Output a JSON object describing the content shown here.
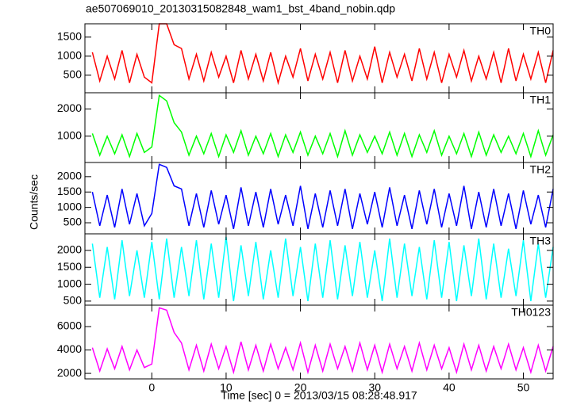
{
  "chart_data": {
    "type": "line",
    "title": "ae507069010_20130315082848_wam1_bst_4band_nobin.qdp",
    "x_label": "Time [sec] 0 = 2013/03/15 08:28:48.917",
    "y_label": "Counts/sec",
    "xlim": [
      -9,
      54
    ],
    "xticks": [
      0,
      10,
      20,
      30,
      40,
      50
    ],
    "x": [
      -8,
      -7,
      -6,
      -5,
      -4,
      -3,
      -2,
      -1,
      0,
      1,
      2,
      3,
      4,
      5,
      6,
      7,
      8,
      9,
      10,
      11,
      12,
      13,
      14,
      15,
      16,
      17,
      18,
      19,
      20,
      21,
      22,
      23,
      24,
      25,
      26,
      27,
      28,
      29,
      30,
      31,
      32,
      33,
      34,
      35,
      36,
      37,
      38,
      39,
      40,
      41,
      42,
      43,
      44,
      45,
      46,
      47,
      48,
      49,
      50,
      51,
      52,
      53,
      54
    ],
    "series": [
      {
        "name": "TH0",
        "color": "#ff0000",
        "ylim": [
          40,
          1850
        ],
        "yticks": [
          500,
          1000,
          1500
        ],
        "values": [
          1100,
          350,
          1000,
          400,
          1150,
          300,
          1050,
          450,
          300,
          1850,
          1850,
          1300,
          1200,
          400,
          1050,
          350,
          1100,
          450,
          1000,
          300,
          1150,
          400,
          1050,
          350,
          1100,
          300,
          1000,
          450,
          1200,
          350,
          1050,
          400,
          1100,
          300,
          1150,
          350,
          1000,
          400,
          1250,
          300,
          1100,
          450,
          1050,
          350,
          1200,
          400,
          1100,
          300,
          1050,
          450,
          1150,
          350,
          1000,
          400,
          1100,
          300,
          1200,
          350,
          1050,
          400,
          1100,
          300,
          1150
        ]
      },
      {
        "name": "TH1",
        "color": "#00ff00",
        "ylim": [
          30,
          2600
        ],
        "yticks": [
          1000,
          2000
        ],
        "values": [
          1100,
          300,
          1000,
          350,
          1050,
          250,
          1100,
          400,
          600,
          2500,
          2300,
          1500,
          1150,
          300,
          1000,
          350,
          1100,
          250,
          1050,
          400,
          1200,
          300,
          1000,
          350,
          1100,
          250,
          1050,
          400,
          1150,
          300,
          1000,
          350,
          1100,
          250,
          1200,
          300,
          1050,
          400,
          1000,
          350,
          1150,
          300,
          1100,
          250,
          1050,
          400,
          1200,
          300,
          1000,
          350,
          1100,
          250,
          1150,
          300,
          1050,
          400,
          1000,
          350,
          1100,
          250,
          1200,
          300,
          1050
        ]
      },
      {
        "name": "TH2",
        "color": "#0000ff",
        "ylim": [
          140,
          2460
        ],
        "yticks": [
          500,
          1000,
          1500,
          2000
        ],
        "values": [
          1500,
          400,
          1400,
          350,
          1600,
          450,
          1450,
          400,
          800,
          2400,
          2300,
          1700,
          1600,
          400,
          1450,
          350,
          1550,
          450,
          1400,
          300,
          1650,
          400,
          1500,
          350,
          1600,
          450,
          1400,
          400,
          1700,
          300,
          1450,
          350,
          1550,
          400,
          1600,
          300,
          1450,
          450,
          1500,
          350,
          1650,
          400,
          1400,
          300,
          1550,
          450,
          1600,
          350,
          1450,
          400,
          1700,
          300,
          1500,
          350,
          1600,
          400,
          1450,
          300,
          1550,
          450,
          1400,
          350,
          1600
        ]
      },
      {
        "name": "TH3",
        "color": "#00ffff",
        "ylim": [
          380,
          2490
        ],
        "yticks": [
          500,
          1000,
          1500,
          2000
        ],
        "values": [
          2200,
          600,
          2100,
          550,
          2300,
          650,
          2000,
          600,
          2250,
          550,
          2350,
          600,
          2100,
          650,
          2300,
          550,
          2200,
          600,
          2400,
          500,
          2150,
          650,
          2250,
          550,
          2000,
          600,
          2350,
          650,
          2100,
          500,
          2200,
          600,
          2300,
          550,
          2150,
          650,
          2250,
          600,
          2000,
          500,
          2350,
          600,
          2200,
          650,
          2100,
          550,
          2300,
          600,
          2250,
          500,
          2150,
          650,
          2350,
          550,
          2200,
          600,
          2050,
          650,
          2300,
          500,
          2200,
          600,
          2100
        ]
      },
      {
        "name": "TH0123",
        "color": "#ff00ff",
        "ylim": [
          1530,
          7830
        ],
        "yticks": [
          2000,
          4000,
          6000
        ],
        "values": [
          4200,
          2200,
          4100,
          2400,
          4300,
          2300,
          4000,
          2500,
          2800,
          7600,
          7400,
          5500,
          4600,
          2300,
          4400,
          2200,
          4500,
          2400,
          4300,
          2100,
          4700,
          2300,
          4400,
          2200,
          4500,
          2400,
          4200,
          2300,
          4600,
          2100,
          4400,
          2200,
          4500,
          2400,
          4300,
          2200,
          4600,
          2300,
          4400,
          2100,
          4500,
          2400,
          4300,
          2200,
          4600,
          2300,
          4400,
          2400,
          4200,
          2100,
          4500,
          2300,
          4400,
          2200,
          4300,
          2400,
          4500,
          2300,
          4200,
          2100,
          4400,
          2200,
          4300
        ]
      }
    ]
  }
}
